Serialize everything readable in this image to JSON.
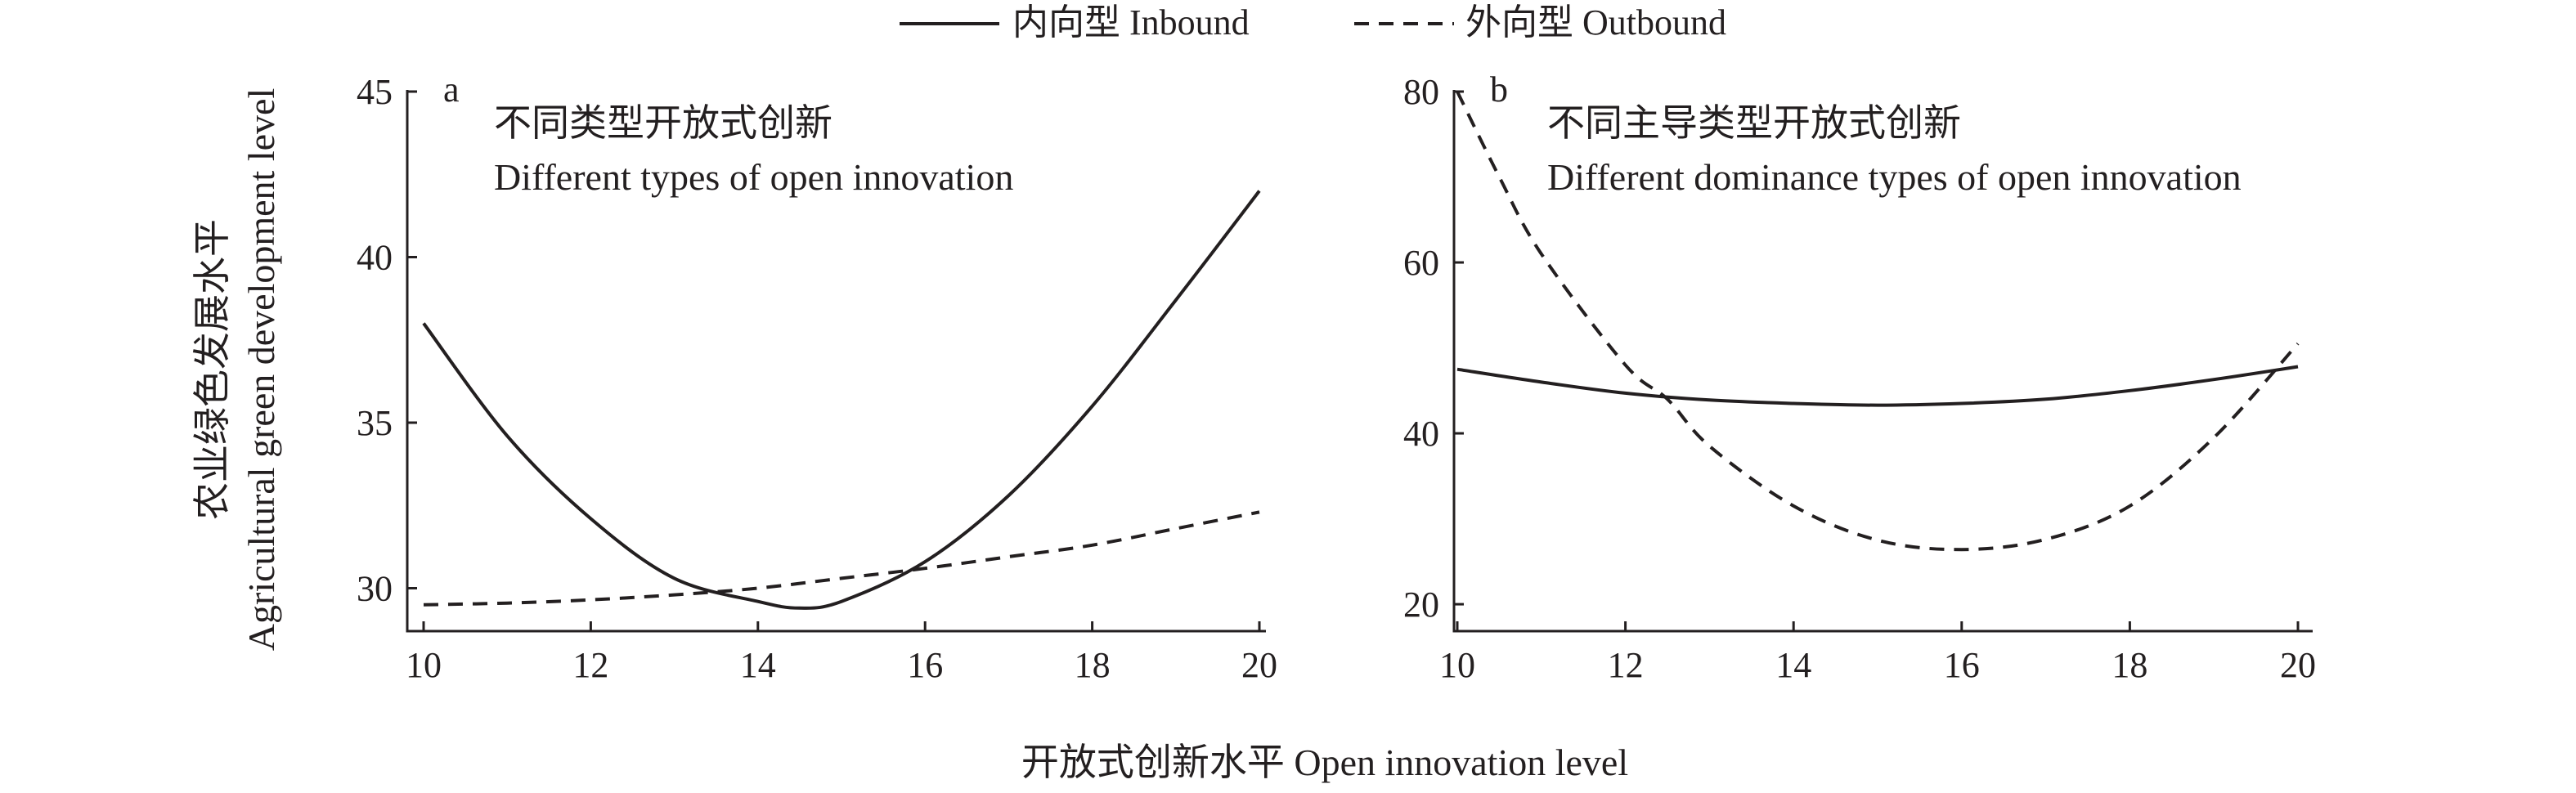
{
  "legend": [
    {
      "label": "内向型 Inbound",
      "style": "solid"
    },
    {
      "label": "外向型 Outbound",
      "style": "dashed"
    }
  ],
  "y_axis_label_cn": "农业绿色发展水平",
  "y_axis_label_en": "Agricultural green development level",
  "x_axis_label": "开放式创新水平 Open innovation level",
  "chart_data": [
    {
      "type": "line",
      "panel_label": "a",
      "annotation_cn": "不同类型开放式创新",
      "annotation_en": "Different types of open innovation",
      "xlim": [
        10,
        20
      ],
      "ylim": [
        29,
        45
      ],
      "x_ticks": [
        10,
        12,
        14,
        16,
        18,
        20
      ],
      "y_ticks": [
        30,
        35,
        40,
        45
      ],
      "series": [
        {
          "name": "内向型 Inbound",
          "style": "solid",
          "x": [
            10,
            11,
            12,
            13,
            14,
            14.5,
            15,
            16,
            17,
            18,
            19,
            20
          ],
          "y": [
            38.0,
            34.6,
            32.1,
            30.3,
            29.6,
            29.4,
            29.6,
            30.8,
            32.8,
            35.5,
            38.7,
            42.0
          ]
        },
        {
          "name": "外向型 Outbound",
          "style": "dashed",
          "x": [
            10,
            11,
            12,
            13,
            14,
            15,
            16,
            17,
            18,
            19,
            20
          ],
          "y": [
            29.5,
            29.55,
            29.65,
            29.8,
            30.0,
            30.3,
            30.6,
            30.95,
            31.3,
            31.8,
            32.3
          ]
        }
      ]
    },
    {
      "type": "line",
      "panel_label": "b",
      "annotation_cn": "不同主导类型开放式创新",
      "annotation_en": "Different dominance types of open innovation",
      "xlim": [
        10,
        20
      ],
      "ylim": [
        18,
        80
      ],
      "x_ticks": [
        10,
        12,
        14,
        16,
        18,
        20
      ],
      "y_ticks": [
        20,
        40,
        60,
        80
      ],
      "series": [
        {
          "name": "内向型 Inbound",
          "style": "solid",
          "x": [
            10,
            11,
            12,
            13,
            14,
            15,
            16,
            17,
            18,
            19,
            20
          ],
          "y": [
            47.5,
            46.0,
            44.7,
            43.9,
            43.5,
            43.3,
            43.5,
            44.0,
            45.0,
            46.3,
            47.8
          ]
        },
        {
          "name": "外向型 Outbound",
          "style": "dashed",
          "x": [
            10,
            10.5,
            11,
            12,
            12.5,
            13,
            14,
            15,
            16,
            17,
            18,
            19,
            20
          ],
          "y": [
            80,
            70,
            61,
            48,
            44,
            38.5,
            31.5,
            27.5,
            26.4,
            27.6,
            31.5,
            39.5,
            50.5
          ]
        }
      ]
    }
  ]
}
